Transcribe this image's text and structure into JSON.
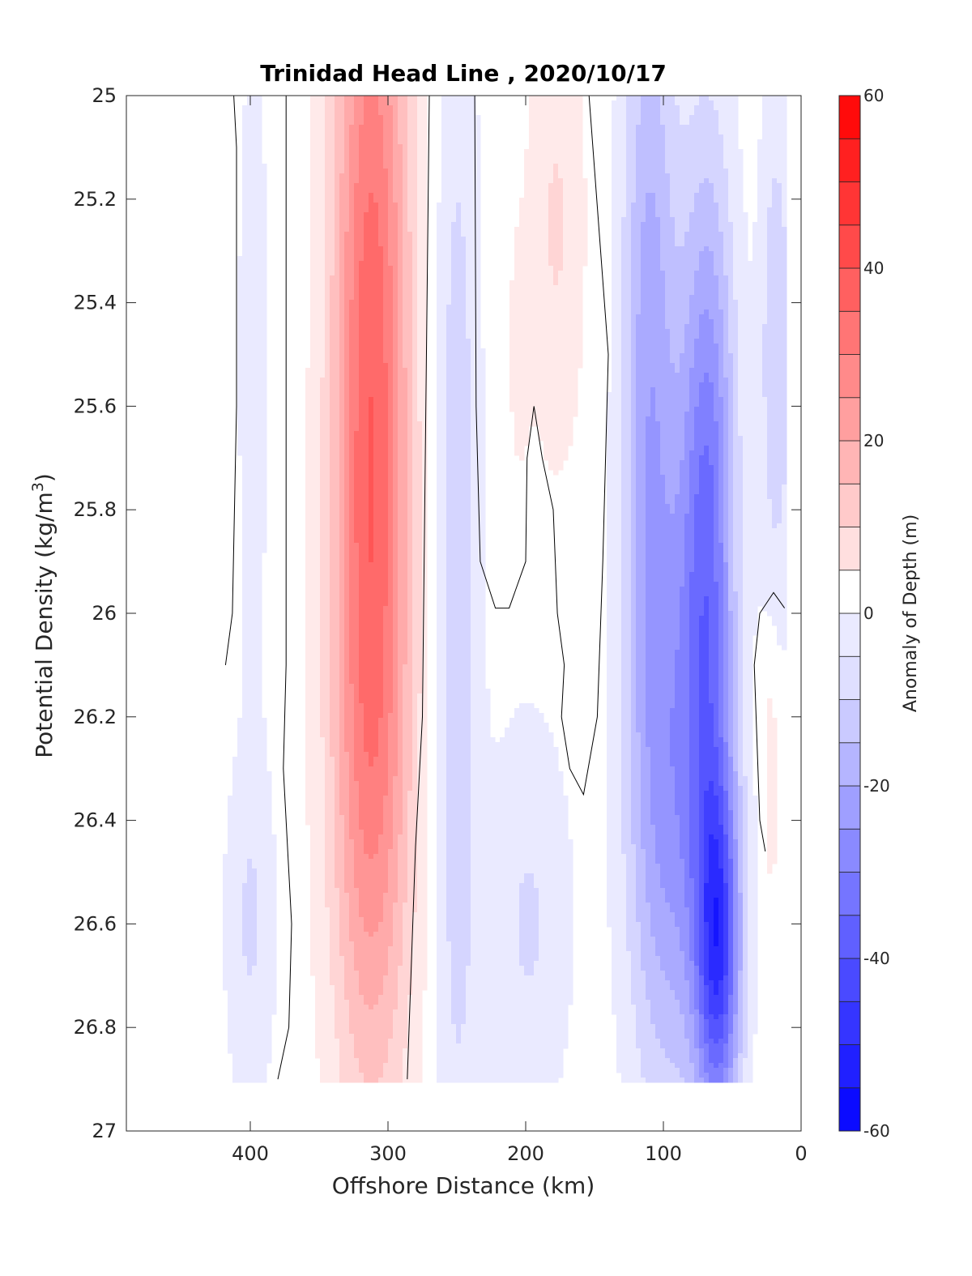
{
  "chart_data": {
    "type": "heatmap",
    "subtype": "filled-contour",
    "title": "Trinidad Head Line , 2020/10/17",
    "xlabel": "Offshore Distance (km)",
    "ylabel_main": "Potential Density (kg/m",
    "ylabel_sup": "3",
    "ylabel_close": ")",
    "xlim": [
      490,
      0
    ],
    "x_reversed": true,
    "ylim": [
      25,
      27
    ],
    "y_reversed": true,
    "x_ticks": [
      400,
      300,
      200,
      100,
      0
    ],
    "x_tick_labels": [
      "400",
      "300",
      "200",
      "100",
      "0"
    ],
    "y_ticks": [
      25,
      25.2,
      25.4,
      25.6,
      25.8,
      26,
      26.2,
      26.4,
      26.6,
      26.8,
      27
    ],
    "y_tick_labels": [
      "25",
      "25.2",
      "25.4",
      "25.6",
      "25.8",
      "26",
      "26.2",
      "26.4",
      "26.6",
      "26.8",
      "27"
    ],
    "data_x_range": [
      420,
      12
    ],
    "data_y_range": [
      25,
      26.9
    ],
    "colorbar": {
      "label": "Anomaly of Depth (m)",
      "range": [
        -60,
        60
      ],
      "levels": [
        -60,
        -55,
        -50,
        -45,
        -40,
        -35,
        -30,
        -25,
        -20,
        -15,
        -10,
        -5,
        0,
        5,
        10,
        15,
        20,
        25,
        30,
        35,
        40,
        45,
        50,
        55,
        60
      ],
      "tick_values": [
        -60,
        -40,
        -20,
        0,
        20,
        40,
        60
      ],
      "tick_labels": [
        "-60",
        "-40",
        "-20",
        "0",
        "20",
        "40",
        "60"
      ],
      "colormap": "blue-white-red"
    },
    "features": [
      {
        "kind": "warm-core",
        "x": 312,
        "y_range": [
          25,
          26.9
        ],
        "peak_value": 40,
        "peak_y": 25.4
      },
      {
        "kind": "cold-core",
        "x": 65,
        "y_range": [
          25,
          26.9
        ],
        "peak_value": -45,
        "peak_y": 26.75
      },
      {
        "kind": "weak-warm",
        "x": 180,
        "y_range": [
          25,
          25.6
        ],
        "peak_value": 8
      },
      {
        "kind": "weak-cold",
        "x": 250,
        "y_range": [
          25.2,
          26.9
        ],
        "peak_value": -15
      }
    ],
    "zero_contour_lines": [
      [
        [
          418,
          26.1
        ],
        [
          413,
          26.0
        ],
        [
          410,
          25.6
        ],
        [
          410,
          25.1
        ],
        [
          412,
          25.0
        ]
      ],
      [
        [
          374,
          25.0
        ],
        [
          374,
          26.1
        ],
        [
          376,
          26.3
        ],
        [
          370,
          26.6
        ],
        [
          372,
          26.8
        ],
        [
          380,
          26.9
        ]
      ],
      [
        [
          270,
          25.0
        ],
        [
          275,
          26.2
        ],
        [
          280,
          26.45
        ],
        [
          282,
          26.6
        ],
        [
          286,
          26.9
        ]
      ],
      [
        [
          237,
          25.0
        ],
        [
          236,
          25.6
        ],
        [
          233,
          25.9
        ],
        [
          222,
          25.99
        ],
        [
          212,
          25.99
        ],
        [
          200,
          25.9
        ],
        [
          199,
          25.7
        ],
        [
          194,
          25.6
        ],
        [
          188,
          25.7
        ],
        [
          180,
          25.8
        ],
        [
          177,
          26.0
        ],
        [
          172,
          26.1
        ],
        [
          174,
          26.2
        ],
        [
          168,
          26.3
        ],
        [
          158,
          26.35
        ],
        [
          148,
          26.2
        ],
        [
          144,
          25.9
        ],
        [
          140,
          25.5
        ],
        [
          154,
          25.0
        ]
      ],
      [
        [
          12,
          25.99
        ],
        [
          20,
          25.96
        ],
        [
          30,
          26.0
        ],
        [
          34,
          26.1
        ],
        [
          30,
          26.4
        ],
        [
          26,
          26.46
        ]
      ]
    ]
  }
}
